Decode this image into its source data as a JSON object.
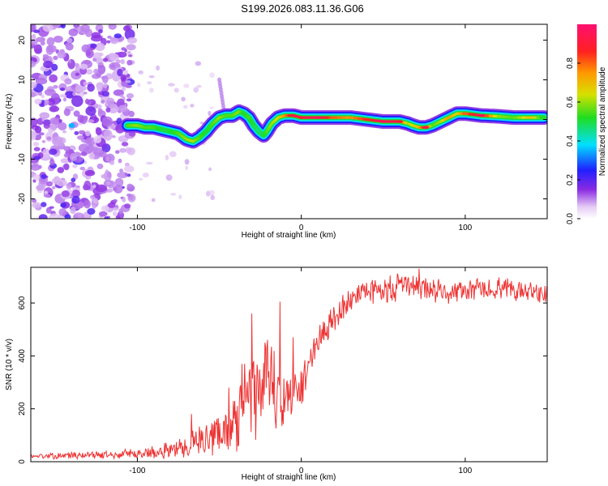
{
  "title": "S199.2026.083.11.36.G06",
  "chart_data": [
    {
      "type": "heatmap",
      "xlabel": "Height of straight line (km)",
      "ylabel": "Frequency (Hz)",
      "xlim": [
        -165,
        150
      ],
      "ylim": [
        -25,
        24
      ],
      "x_ticks": [
        -100,
        0,
        100
      ],
      "x_tick_labels": [
        "-100",
        "0",
        "100"
      ],
      "y_ticks": [
        -20,
        -10,
        0,
        10,
        20
      ],
      "y_tick_labels": [
        "-20",
        "-10",
        "0",
        "10",
        "20"
      ],
      "ridge": {
        "x": [
          -106,
          -100,
          -95,
          -90,
          -85,
          -80,
          -75,
          -70,
          -66,
          -62,
          -58,
          -54,
          -50,
          -46,
          -42,
          -38,
          -35,
          -32,
          -29,
          -26,
          -23,
          -21,
          -18,
          -14,
          -10,
          -5,
          0,
          10,
          20,
          30,
          40,
          50,
          60,
          65,
          68,
          72,
          76,
          80,
          85,
          90,
          95,
          100,
          110,
          120,
          130,
          140,
          148
        ],
        "y": [
          -1.5,
          -1.5,
          -2,
          -2,
          -2.5,
          -3,
          -3.5,
          -5,
          -5.5,
          -4.5,
          -3,
          -1,
          0.5,
          1,
          1,
          2,
          1.5,
          0.5,
          -1.5,
          -3,
          -4,
          -3,
          -1,
          0.5,
          1,
          1,
          0.5,
          0.5,
          0.5,
          0.5,
          0,
          -0.5,
          -0.5,
          -1,
          -1.5,
          -2,
          -2,
          -1.5,
          -0.5,
          0.5,
          1.5,
          1.5,
          1,
          0.8,
          0.5,
          0.5,
          0.5
        ],
        "amplitude": [
          0.55,
          0.6,
          0.55,
          0.55,
          0.5,
          0.5,
          0.55,
          0.6,
          0.62,
          0.55,
          0.5,
          0.55,
          0.6,
          0.55,
          0.55,
          0.6,
          0.5,
          0.55,
          0.5,
          0.45,
          0.5,
          0.55,
          0.6,
          0.65,
          0.75,
          0.92,
          0.9,
          0.95,
          0.8,
          0.75,
          0.85,
          0.95,
          0.9,
          0.6,
          0.65,
          0.7,
          0.92,
          0.55,
          0.6,
          0.75,
          0.65,
          0.8,
          0.95,
          0.6,
          0.55,
          0.7,
          0.5
        ]
      },
      "noise_region_x": [
        -165,
        -106
      ],
      "colorbar": {
        "label": "Normalized spectral amplitude",
        "range": [
          0.0,
          1.0
        ],
        "ticks": [
          0.0,
          0.2,
          0.4,
          0.6,
          0.8
        ],
        "tick_labels": [
          "0.0",
          "0.2",
          "0.4",
          "0.6",
          "0.8"
        ]
      }
    },
    {
      "type": "line",
      "xlabel": "Height of straight line (km)",
      "ylabel": "SNR (10 * v/v)",
      "xlim": [
        -165,
        150
      ],
      "ylim": [
        0,
        735
      ],
      "x_ticks": [
        -100,
        0,
        100
      ],
      "x_tick_labels": [
        "-100",
        "0",
        "100"
      ],
      "y_ticks": [
        0,
        200,
        400,
        600
      ],
      "y_tick_labels": [
        "0",
        "200",
        "400",
        "600"
      ],
      "color": "#ee3333",
      "series_envelope": {
        "x": [
          -165,
          -150,
          -130,
          -110,
          -100,
          -90,
          -80,
          -70,
          -60,
          -50,
          -45,
          -40,
          -35,
          -30,
          -25,
          -20,
          -15,
          -10,
          -5,
          0,
          5,
          10,
          15,
          20,
          25,
          30,
          40,
          50,
          60,
          70,
          80,
          90,
          100,
          110,
          120,
          130,
          140,
          150
        ],
        "mean": [
          20,
          22,
          25,
          28,
          30,
          35,
          45,
          60,
          80,
          110,
          130,
          160,
          200,
          250,
          270,
          300,
          270,
          220,
          260,
          300,
          380,
          450,
          500,
          540,
          580,
          620,
          640,
          650,
          660,
          665,
          650,
          640,
          645,
          650,
          655,
          650,
          650,
          630
        ],
        "amp": [
          8,
          10,
          12,
          15,
          18,
          22,
          28,
          40,
          50,
          70,
          80,
          110,
          130,
          150,
          140,
          150,
          140,
          110,
          90,
          80,
          60,
          55,
          50,
          45,
          40,
          40,
          40,
          45,
          45,
          45,
          40,
          35,
          35,
          35,
          35,
          35,
          35,
          30
        ]
      },
      "spikes": [
        {
          "x": -67,
          "y": 180
        },
        {
          "x": -44,
          "y": 280
        },
        {
          "x": -36,
          "y": 370
        },
        {
          "x": -30,
          "y": 560
        },
        {
          "x": -22,
          "y": 450
        },
        {
          "x": -13,
          "y": 605
        },
        {
          "x": -5,
          "y": 470
        },
        {
          "x": 72,
          "y": 730
        }
      ]
    }
  ]
}
